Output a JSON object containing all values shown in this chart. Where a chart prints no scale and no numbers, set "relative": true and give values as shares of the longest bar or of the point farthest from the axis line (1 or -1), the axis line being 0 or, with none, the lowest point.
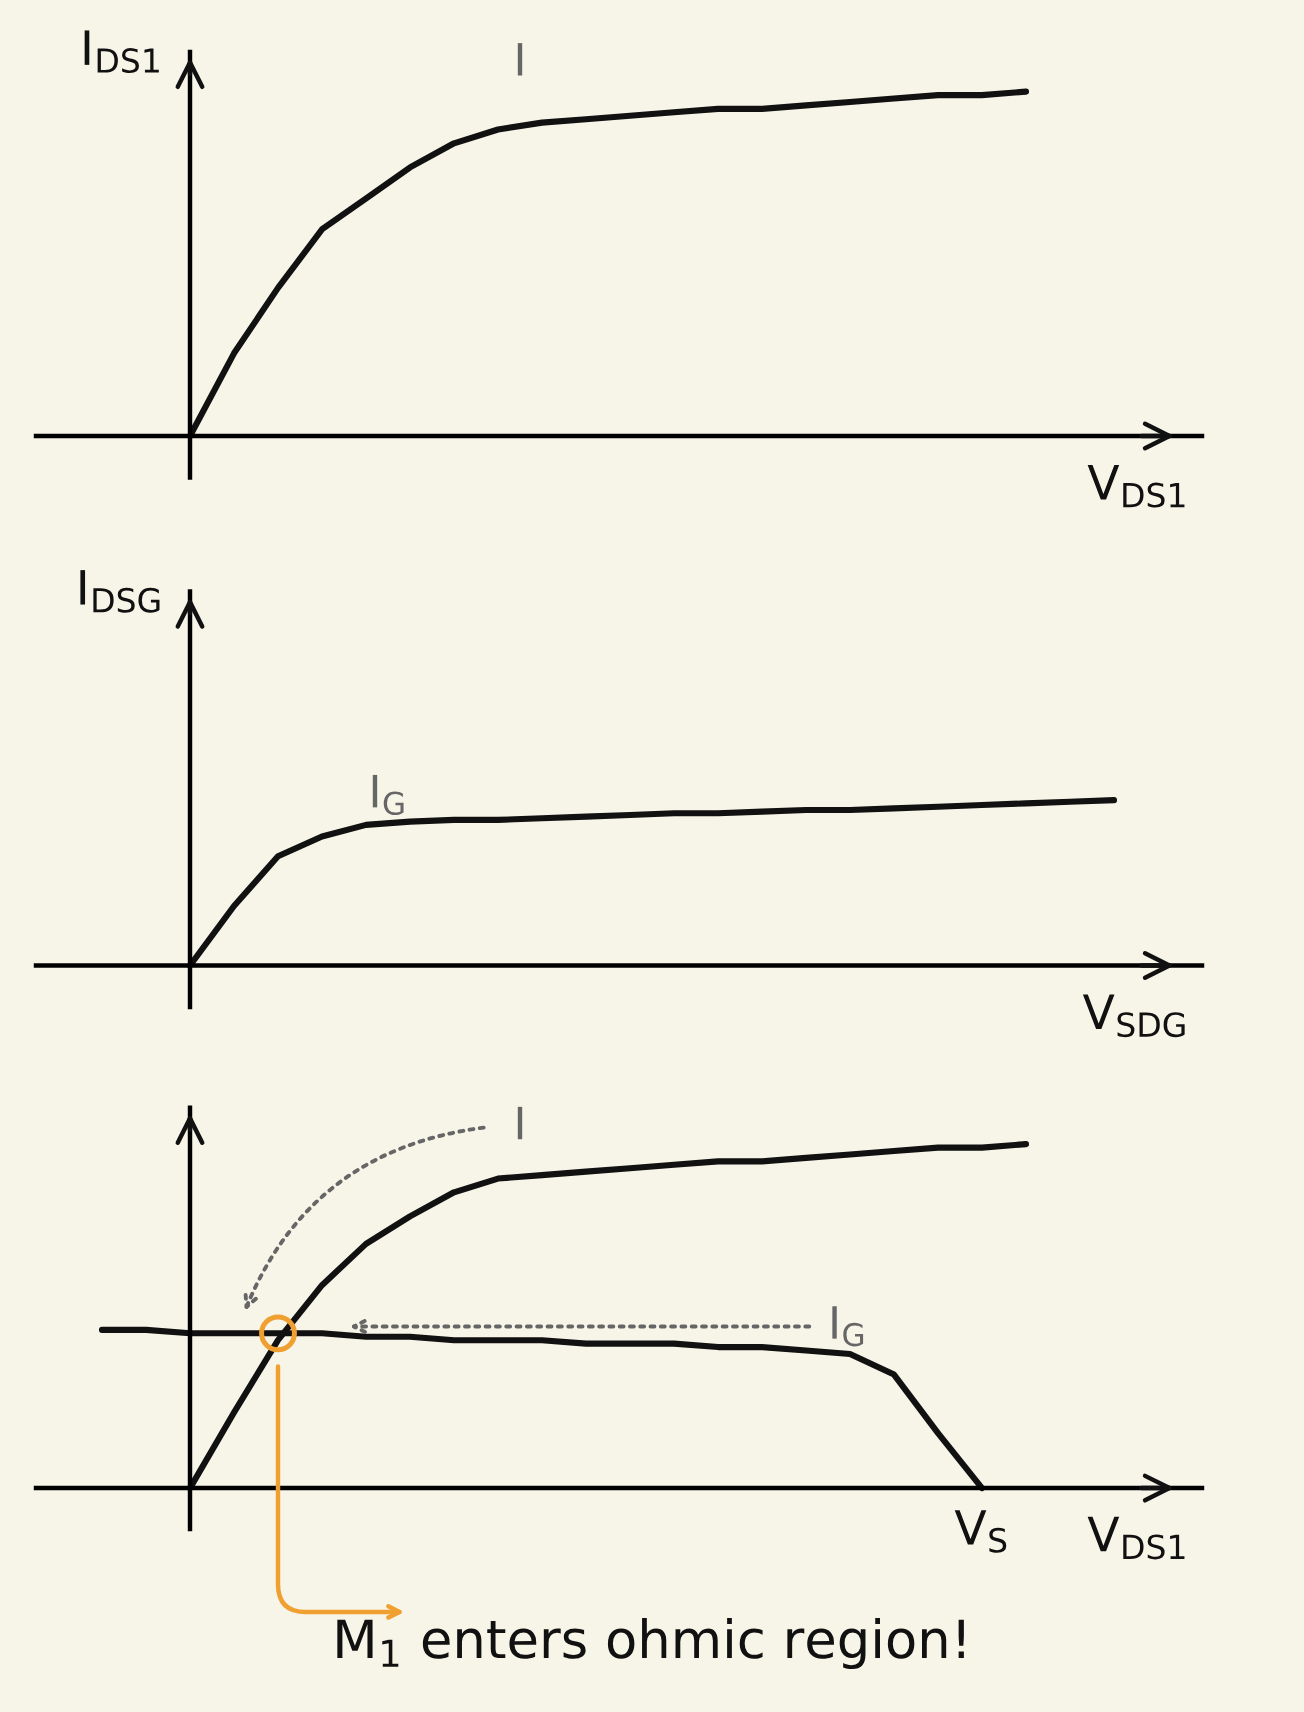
{
  "chart_data": [
    {
      "type": "line",
      "relative": true,
      "ylabel": "I$_{DS1}$",
      "xlabel": "V$_{DS1}$",
      "categories": [
        null,
        null,
        null,
        null,
        null,
        null,
        null,
        null,
        null,
        null,
        null,
        null,
        null,
        null,
        null,
        null,
        null,
        null,
        null,
        null,
        null,
        null,
        null,
        null,
        null
      ],
      "series": [
        {
          "color": "#111111",
          "values": [
            null,
            null,
            0,
            0.24,
            0.43,
            0.6,
            0.69,
            0.78,
            0.85,
            0.89,
            0.91,
            0.92,
            0.93,
            0.94,
            0.95,
            0.95,
            0.96,
            0.97,
            0.98,
            0.99,
            0.99,
            1.0,
            null,
            null,
            null
          ]
        }
      ],
      "annotations": [
        "I"
      ]
    },
    {
      "type": "line",
      "relative": true,
      "ylabel": "I$_{DSG}$",
      "xlabel": "V$_{SDG}$",
      "categories": [
        null,
        null,
        null,
        null,
        null,
        null,
        null,
        null,
        null,
        null,
        null,
        null,
        null,
        null,
        null,
        null,
        null,
        null,
        null,
        null,
        null,
        null,
        null,
        null,
        null
      ],
      "series": [
        {
          "color": "#111111",
          "values": [
            null,
            null,
            0,
            0.36,
            0.66,
            0.78,
            0.85,
            0.87,
            0.88,
            0.88,
            0.89,
            0.9,
            0.91,
            0.92,
            0.92,
            0.93,
            0.94,
            0.94,
            0.95,
            0.96,
            0.97,
            0.98,
            0.99,
            1.0,
            null
          ]
        }
      ],
      "annotations": [
        "I$_{G}$"
      ]
    },
    {
      "type": "line",
      "relative": true,
      "xlabel": "V$_{DS1}$",
      "categories": [
        null,
        null,
        null,
        null,
        null,
        null,
        null,
        null,
        null,
        null,
        null,
        null,
        null,
        null,
        null,
        null,
        null,
        null,
        null,
        null,
        null,
        null,
        null,
        null,
        null
      ],
      "series": [
        {
          "color": "#111111",
          "values": [
            null,
            null,
            0,
            0.22,
            0.43,
            0.59,
            0.71,
            0.79,
            0.86,
            0.9,
            0.91,
            0.92,
            0.93,
            0.94,
            0.95,
            0.95,
            0.96,
            0.97,
            0.98,
            0.99,
            0.99,
            1.0,
            null,
            null,
            null
          ]
        },
        {
          "color": "#111111",
          "values": [
            0.46,
            0.46,
            0.45,
            0.45,
            0.45,
            0.45,
            0.44,
            0.44,
            0.43,
            0.43,
            0.43,
            0.42,
            0.42,
            0.42,
            0.41,
            0.41,
            0.4,
            0.39,
            0.33,
            0.16,
            0,
            null,
            null,
            null,
            null
          ]
        },
        {
          "type": "scatter",
          "color": "#f0a030",
          "values": [
            null,
            null,
            null,
            null,
            0.45,
            null,
            null,
            null,
            null,
            null,
            null,
            null,
            null,
            null,
            null,
            null,
            null,
            null,
            null,
            null,
            null,
            null,
            null,
            null,
            null
          ]
        }
      ],
      "annotations": [
        "I",
        "I$_{G}$",
        "V$_{S}$",
        "M$_{1}$ enters ohmic region!"
      ]
    }
  ]
}
